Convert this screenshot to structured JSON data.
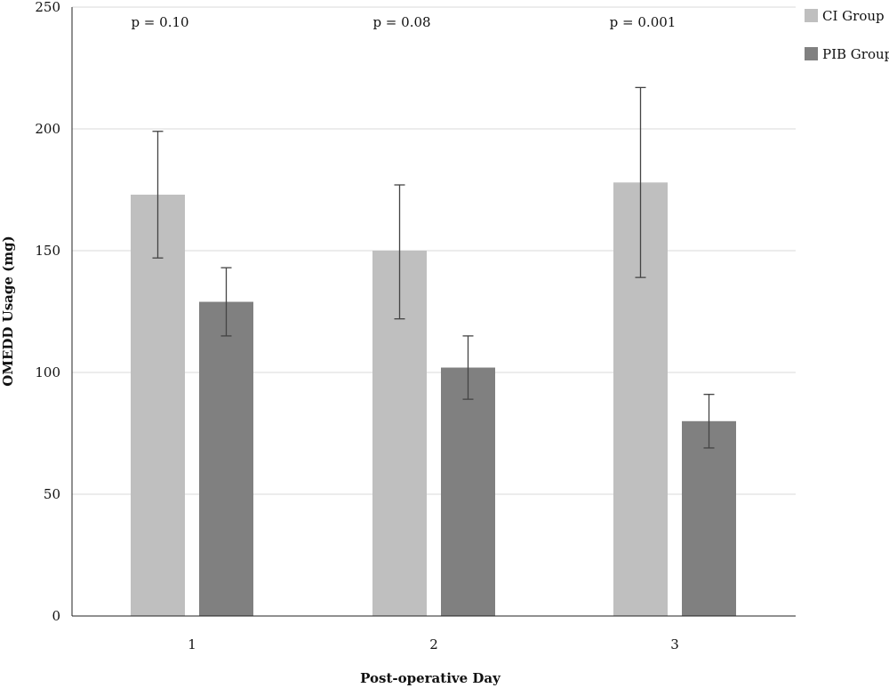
{
  "chart_data": {
    "type": "bar",
    "title": "",
    "xlabel": "Post-operative Day",
    "ylabel": "OMEDD Usage (mg)",
    "ylim": [
      0,
      250
    ],
    "yticks": [
      "0",
      "50",
      "100",
      "150",
      "200",
      "250"
    ],
    "categories": [
      "1",
      "2",
      "3"
    ],
    "series": [
      {
        "name": "CI Group",
        "color": "#bfbfbf",
        "values": [
          173,
          150,
          178
        ],
        "error_low": [
          147,
          122,
          139
        ],
        "error_high": [
          199,
          177,
          217
        ]
      },
      {
        "name": "PIB Group",
        "color": "#808080",
        "values": [
          129,
          102,
          80
        ],
        "error_low": [
          115,
          89,
          69
        ],
        "error_high": [
          143,
          115,
          91
        ]
      }
    ],
    "annotations": [
      "p = 0.10",
      "p = 0.08",
      "p = 0.001"
    ],
    "grid": true,
    "legend": "top-right"
  }
}
